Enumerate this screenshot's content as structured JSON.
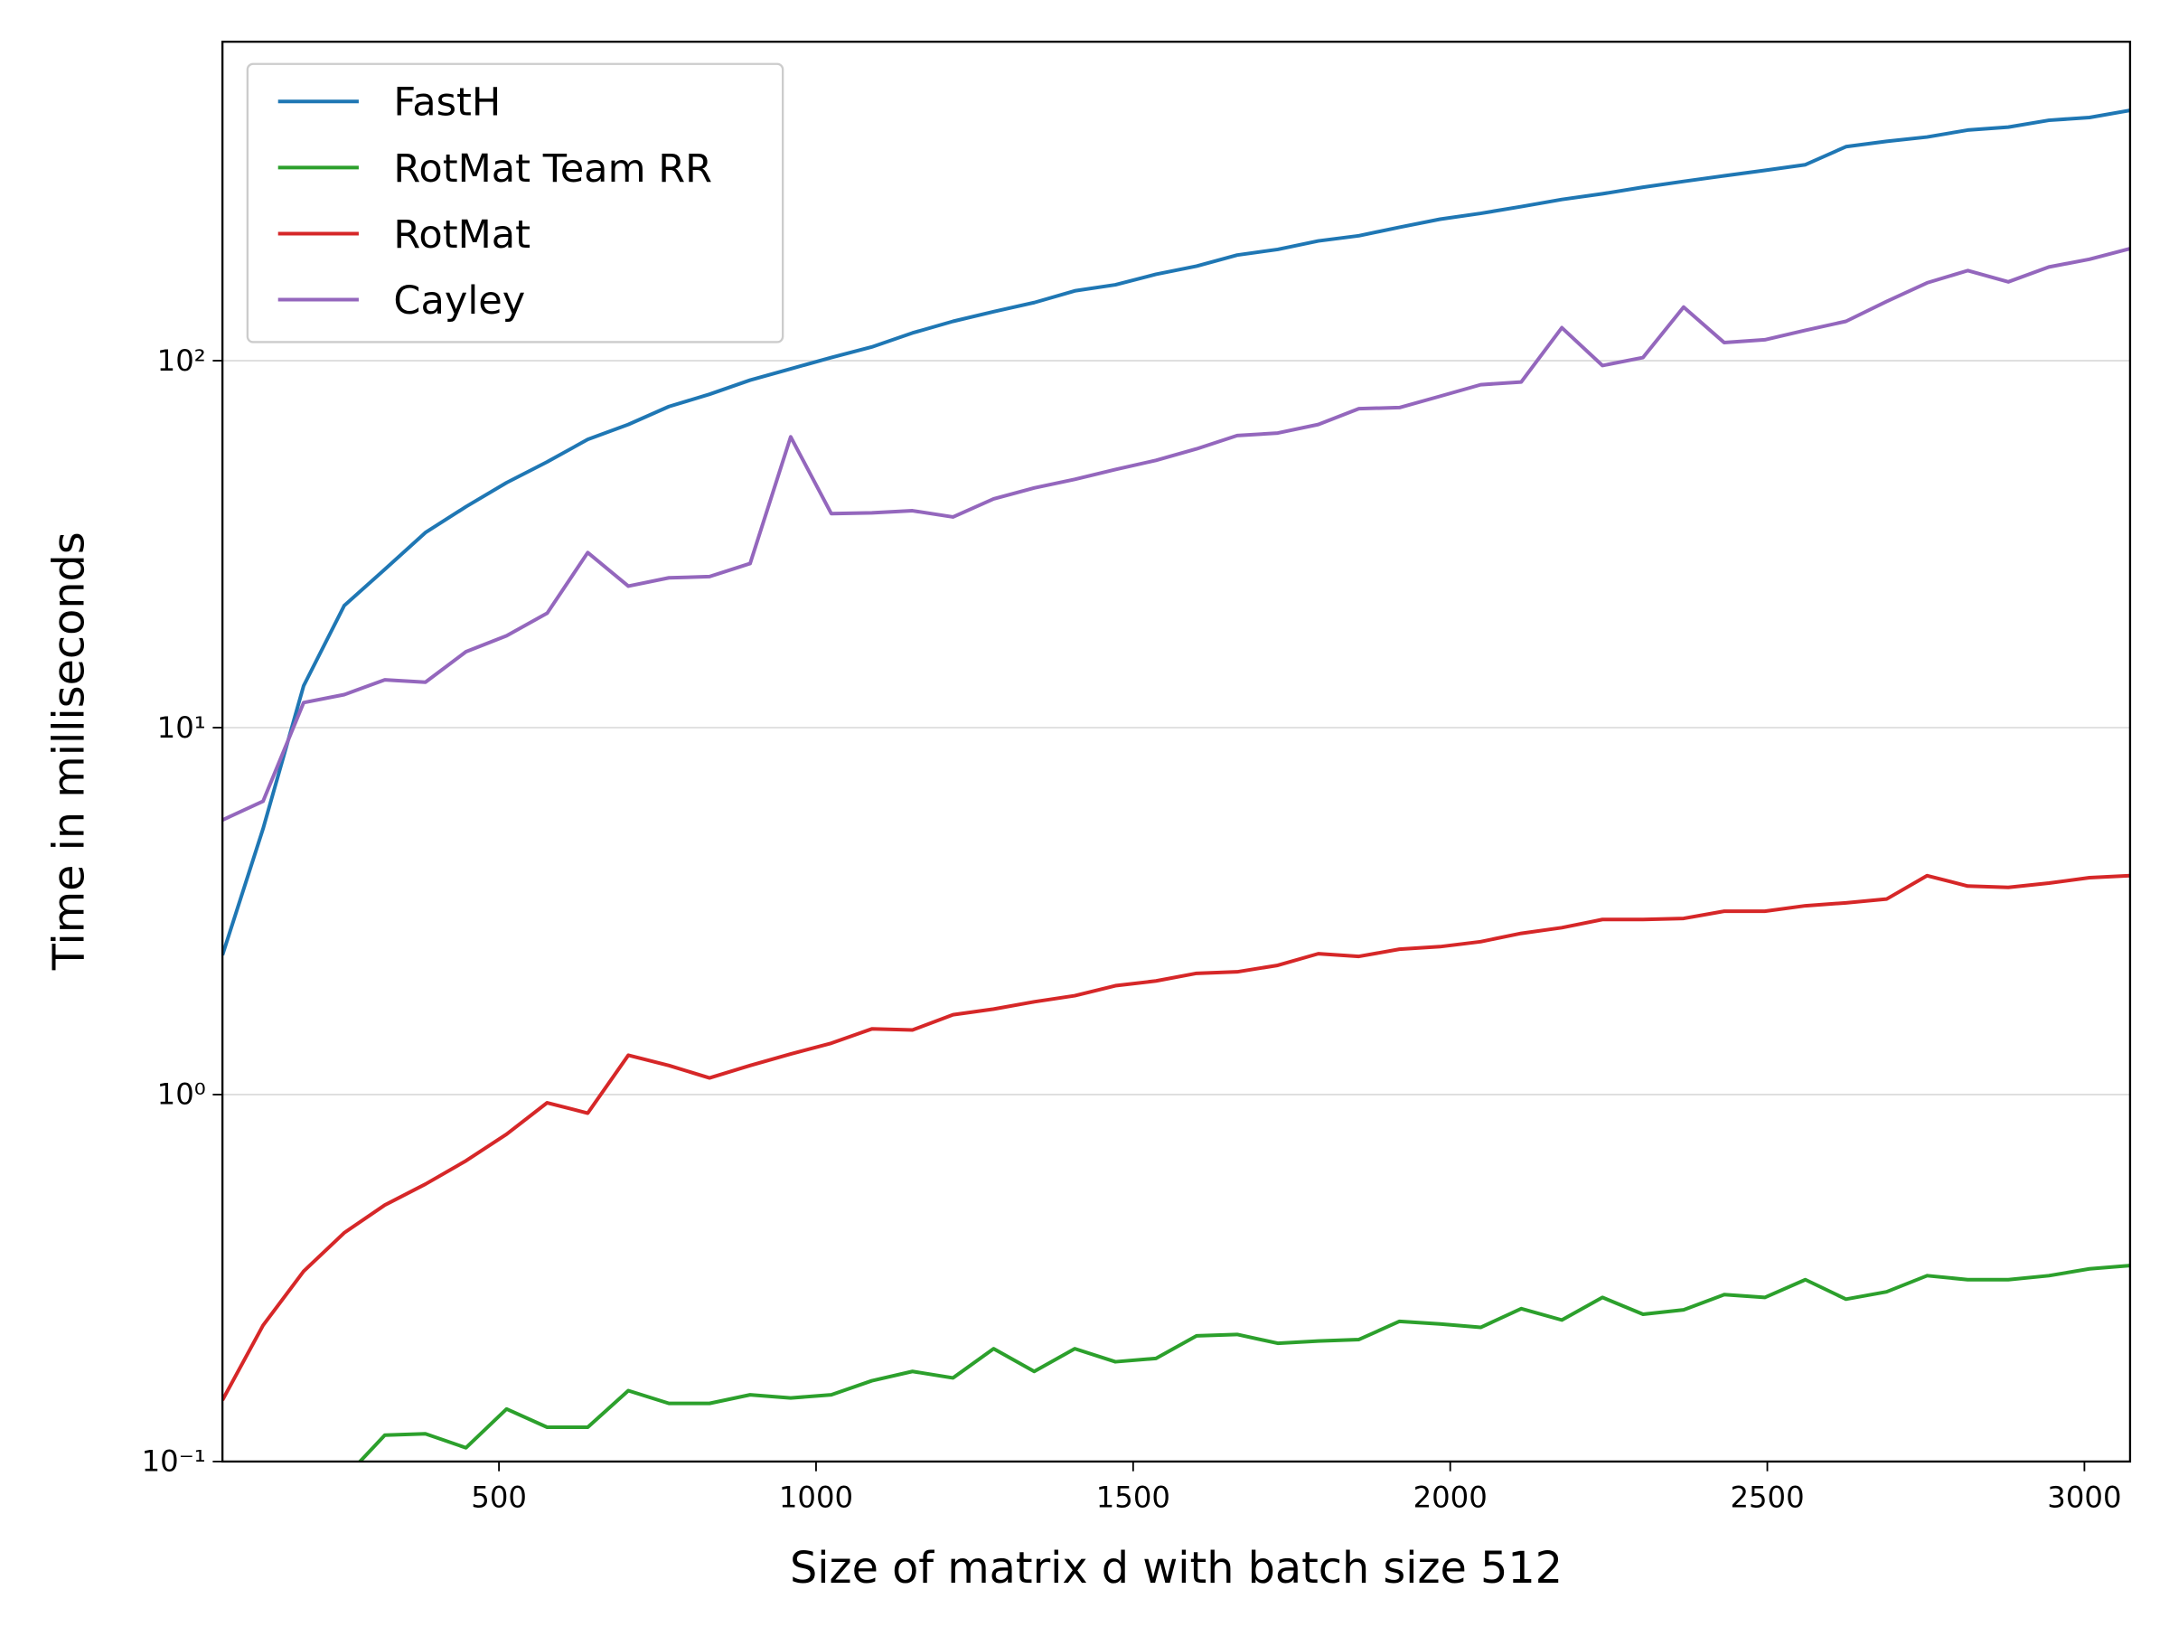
{
  "chart_data": {
    "type": "line",
    "xlabel": "Size of matrix d with batch size 512",
    "ylabel": "Time in milliseconds",
    "y_scale": "log",
    "grid": "y",
    "legend_position": "upper-left",
    "x": [
      64,
      128,
      192,
      256,
      320,
      384,
      448,
      512,
      576,
      640,
      704,
      768,
      832,
      896,
      960,
      1024,
      1088,
      1152,
      1216,
      1280,
      1344,
      1408,
      1472,
      1536,
      1600,
      1664,
      1728,
      1792,
      1856,
      1920,
      1984,
      2048,
      2112,
      2176,
      2240,
      2304,
      2368,
      2432,
      2496,
      2560,
      2624,
      2688,
      2752,
      2816,
      2880,
      2944,
      3008,
      3072
    ],
    "xlim": [
      64,
      3072
    ],
    "xticks": [
      500,
      1000,
      1500,
      2000,
      2500,
      3000
    ],
    "ylim": [
      0.1,
      740
    ],
    "yticks": [
      {
        "value": 0.1,
        "label": "10⁻¹"
      },
      {
        "value": 1,
        "label": "10⁰"
      },
      {
        "value": 10,
        "label": "10¹"
      },
      {
        "value": 100,
        "label": "10²"
      }
    ],
    "series": [
      {
        "name": "FastH",
        "color": "#1f77b4",
        "values": [
          2.4,
          5.3,
          13,
          21.5,
          27,
          34,
          40,
          46.5,
          53,
          61,
          67,
          75,
          81,
          88.5,
          95,
          102,
          109,
          119,
          128,
          136,
          144,
          155,
          161,
          172,
          181,
          194,
          201,
          212,
          219,
          231,
          243,
          252,
          263,
          275,
          285,
          297,
          308,
          319,
          330,
          342,
          383,
          396,
          407,
          425,
          433,
          452,
          460,
          481
        ]
      },
      {
        "name": "RotMat Team RR",
        "color": "#2ca02c",
        "values": [
          null,
          null,
          null,
          0.09,
          0.118,
          0.119,
          0.109,
          0.139,
          0.124,
          0.124,
          0.156,
          0.144,
          0.144,
          0.152,
          0.149,
          0.152,
          0.166,
          0.176,
          0.169,
          0.203,
          0.176,
          0.203,
          0.187,
          0.191,
          0.22,
          0.222,
          0.21,
          0.213,
          0.215,
          0.241,
          0.237,
          0.232,
          0.261,
          0.243,
          0.28,
          0.252,
          0.259,
          0.285,
          0.28,
          0.313,
          0.277,
          0.29,
          0.321,
          0.313,
          0.313,
          0.321,
          0.335,
          0.342
        ]
      },
      {
        "name": "RotMat",
        "color": "#d62728",
        "values": [
          0.147,
          0.235,
          0.33,
          0.42,
          0.5,
          0.57,
          0.66,
          0.78,
          0.95,
          0.89,
          1.28,
          1.2,
          1.11,
          1.2,
          1.29,
          1.38,
          1.51,
          1.5,
          1.65,
          1.71,
          1.79,
          1.86,
          1.98,
          2.04,
          2.14,
          2.16,
          2.25,
          2.42,
          2.38,
          2.49,
          2.53,
          2.61,
          2.75,
          2.85,
          3.0,
          3.0,
          3.02,
          3.16,
          3.16,
          3.27,
          3.33,
          3.41,
          3.95,
          3.7,
          3.67,
          3.77,
          3.9,
          3.95
        ]
      },
      {
        "name": "Cayley",
        "color": "#9467bd",
        "values": [
          5.6,
          6.3,
          11.7,
          12.3,
          13.5,
          13.3,
          16.1,
          17.8,
          20.5,
          30,
          24.3,
          25.6,
          25.8,
          28,
          62,
          38.3,
          38.5,
          39,
          37.5,
          42,
          45,
          47.5,
          50.5,
          53.5,
          57.5,
          62.5,
          63.5,
          67,
          74,
          74.5,
          80,
          86,
          87.5,
          123,
          97,
          102,
          140,
          112,
          114,
          121,
          128,
          145,
          163,
          176,
          164,
          180,
          189,
          202
        ]
      }
    ]
  }
}
